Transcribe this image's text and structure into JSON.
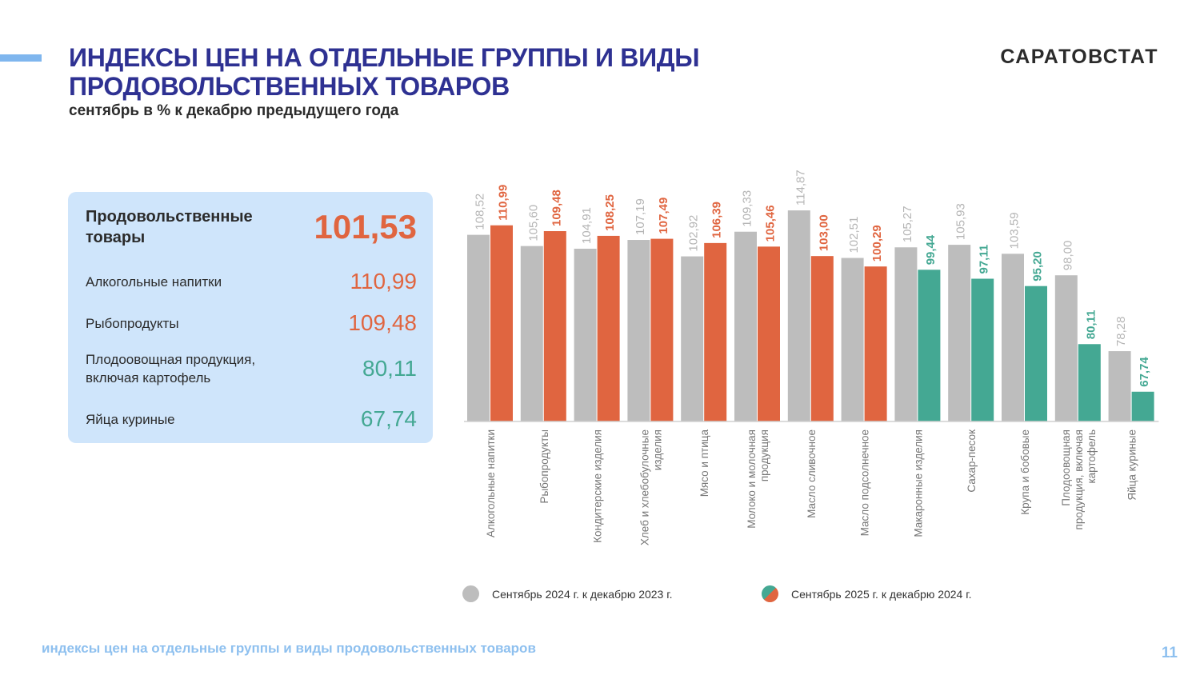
{
  "header": {
    "title_line1": "ИНДЕКСЫ ЦЕН НА ОТДЕЛЬНЫЕ ГРУППЫ И ВИДЫ",
    "title_line2": "ПРОДОВОЛЬСТВЕННЫХ ТОВАРОВ",
    "subtitle": "сентябрь в % к декабрю предыдущего года",
    "brand": "САРАТОВСТАТ"
  },
  "colors": {
    "title": "#2e3192",
    "gray_series": "#bdbdbd",
    "up": "#e06540",
    "down": "#44a893",
    "panel_bg": "#cfe5fb",
    "footer": "#8ec0ef"
  },
  "panel": {
    "main": {
      "label_line1": "Продовольственные",
      "label_line2": "товары",
      "value": "101,53",
      "trend": "up"
    },
    "items": [
      {
        "label_line1": "Алкогольные напитки",
        "label_line2": "",
        "value": "110,99",
        "trend": "up"
      },
      {
        "label_line1": "Рыбопродукты",
        "label_line2": "",
        "value": "109,48",
        "trend": "up"
      },
      {
        "label_line1": "Плодоовощная продукция,",
        "label_line2": "включая картофель",
        "value": "80,11",
        "trend": "down"
      },
      {
        "label_line1": "Яйца куриные",
        "label_line2": "",
        "value": "67,74",
        "trend": "down"
      }
    ]
  },
  "legend": {
    "series_2024": "Сентябрь 2024 г. к декабрю  2023 г.",
    "series_2025": "Сентябрь  2025 г. к декабрю  2024 г."
  },
  "chart_data": {
    "type": "bar",
    "title": "",
    "xlabel": "",
    "ylabel": "",
    "ylim": [
      60,
      120
    ],
    "grid": false,
    "legend_position": "bottom",
    "categories": [
      [
        "Алкогольные напитки"
      ],
      [
        "Рыбопродукты"
      ],
      [
        "Кондитерские изделия"
      ],
      [
        "Хлеб и хлебобулочные",
        "изделия"
      ],
      [
        "Мясо и птица"
      ],
      [
        "Молоко и молочная",
        "продукция"
      ],
      [
        "Масло сливочное"
      ],
      [
        "Масло подсолнечное"
      ],
      [
        "Макаронные изделия"
      ],
      [
        "Сахар-песок"
      ],
      [
        "Крупа и бобовые"
      ],
      [
        "Плодоовощная",
        "продукция, включая",
        "картофель"
      ],
      [
        "Яйца куриные"
      ]
    ],
    "series": [
      {
        "name": "Сентябрь 2024 г. к декабрю 2023 г.",
        "values": [
          108.52,
          105.6,
          104.91,
          107.19,
          102.92,
          109.33,
          114.87,
          102.51,
          105.27,
          105.93,
          103.59,
          98.0,
          78.28
        ],
        "labels": [
          "108,52",
          "105,60",
          "104,91",
          "107,19",
          "102,92",
          "109,33",
          "114,87",
          "102,51",
          "105,27",
          "105,93",
          "103,59",
          "98,00",
          "78,28"
        ]
      },
      {
        "name": "Сентябрь 2025 г. к декабрю 2024 г.",
        "values": [
          110.99,
          109.48,
          108.25,
          107.49,
          106.39,
          105.46,
          103.0,
          100.29,
          99.44,
          97.11,
          95.2,
          80.11,
          67.74
        ],
        "labels": [
          "110,99",
          "109,48",
          "108,25",
          "107,49",
          "106,39",
          "105,46",
          "103,00",
          "100,29",
          "99,44",
          "97,11",
          "95,20",
          "80,11",
          "67,74"
        ]
      }
    ],
    "threshold": 100
  },
  "footer": {
    "caption": "индексы цен на отдельные группы и виды продовольственных товаров",
    "page": "11"
  }
}
